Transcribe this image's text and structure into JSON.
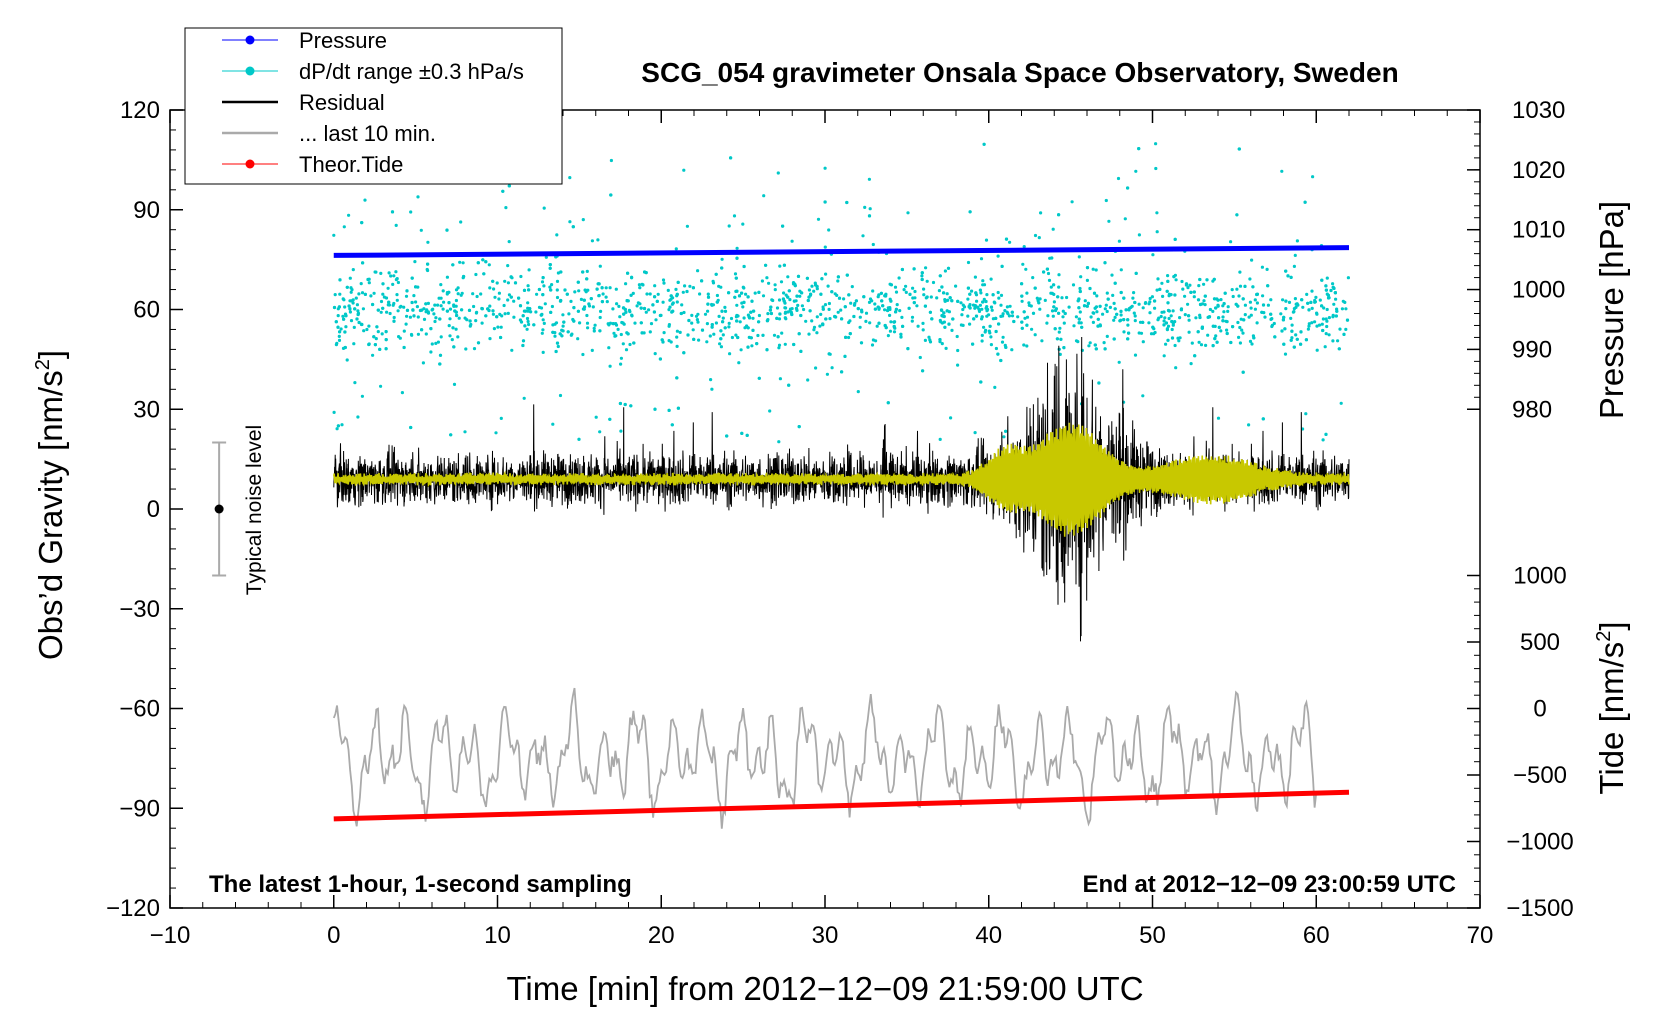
{
  "chart_data": {
    "type": "line",
    "title": "SCG_054 gravimeter Onsala Space Observatory, Sweden",
    "xlabel": "Time [min] from 2012−12−09 21:59:00 UTC",
    "ylabel": "Obs’d Gravity [nm/s²]",
    "ylabel_left_base": "Obs’d Gravity [nm/s",
    "ylabel_right_pressure": "Pressure [hPa]",
    "ylabel_right_tide_base": "Tide [nm/s",
    "ylabel_superscript": "2",
    "ylabel_close": "]",
    "xlim": [
      -10,
      70
    ],
    "ylim": [
      -120,
      120
    ],
    "pressure_axis": {
      "range": [
        980,
        1030
      ],
      "maps_to_gravity": [
        30,
        120
      ]
    },
    "tide_axis": {
      "range": [
        -1500,
        1000
      ],
      "maps_to_gravity": [
        -120,
        -20
      ]
    },
    "x_ticks": [
      "−10",
      "0",
      "10",
      "20",
      "30",
      "40",
      "50",
      "60",
      "70"
    ],
    "y_ticks": [
      "120",
      "90",
      "60",
      "30",
      "0",
      "−30",
      "−60",
      "−90",
      "−120"
    ],
    "pressure_ticks": [
      "1030",
      "1020",
      "1010",
      "1000",
      "990",
      "980"
    ],
    "tide_ticks": [
      "1000",
      "500",
      "0",
      "−500",
      "−1000",
      "−1500"
    ],
    "legend": [
      {
        "label": "Pressure",
        "color": "#0000ff",
        "style": "line-dot"
      },
      {
        "label": "dP/dt range ±0.3 hPa/s",
        "color": "#00c8c8",
        "style": "line-dot"
      },
      {
        "label": "Residual",
        "color": "#000000",
        "style": "line"
      },
      {
        "label": "... last 10 min.",
        "color": "#aaaaaa",
        "style": "line"
      },
      {
        "label": "Theor.Tide",
        "color": "#ff0000",
        "style": "line-dot"
      }
    ],
    "annotations": {
      "bottom_left": "The latest 1-hour, 1-second sampling",
      "bottom_right": "End at 2012−12−09 23:00:59 UTC",
      "noise_label": "Typical noise level"
    },
    "noise_bar": {
      "x": -7,
      "center": 0,
      "low": -20,
      "high": 20
    },
    "series": [
      {
        "name": "Pressure",
        "color": "#0000ff",
        "axis": "pressure",
        "x": [
          0,
          62
        ],
        "values": [
          1005.7,
          1007.0
        ]
      },
      {
        "name": "dP/dt range ±0.3 hPa/s",
        "color": "#00c8c8",
        "axis": "gravity",
        "kind": "scatter",
        "x_range": [
          0,
          62
        ],
        "center": 60,
        "spread": 12,
        "outlier_max": 110,
        "count": 2200
      },
      {
        "name": "Residual",
        "color": "#000000",
        "axis": "gravity",
        "kind": "noise",
        "x_range": [
          0,
          62
        ],
        "center": 9,
        "base_amp": 9,
        "burst_center_min": 45,
        "burst_amp": 38
      },
      {
        "name": "Residual filtered",
        "color": "#c8c800",
        "axis": "gravity",
        "kind": "smooth",
        "x_range": [
          0,
          62
        ],
        "center": 9
      },
      {
        "name": "... last 10 min.",
        "color": "#aaaaaa",
        "axis": "gravity",
        "kind": "wiggle",
        "x_range": [
          0,
          60
        ],
        "center": -75,
        "amp": 16
      },
      {
        "name": "Theor.Tide",
        "color": "#ff0000",
        "axis": "tide",
        "x": [
          0,
          62
        ],
        "values": [
          -830,
          -630
        ]
      }
    ],
    "colors": {
      "frame": "#000000",
      "background": "#ffffff"
    }
  }
}
